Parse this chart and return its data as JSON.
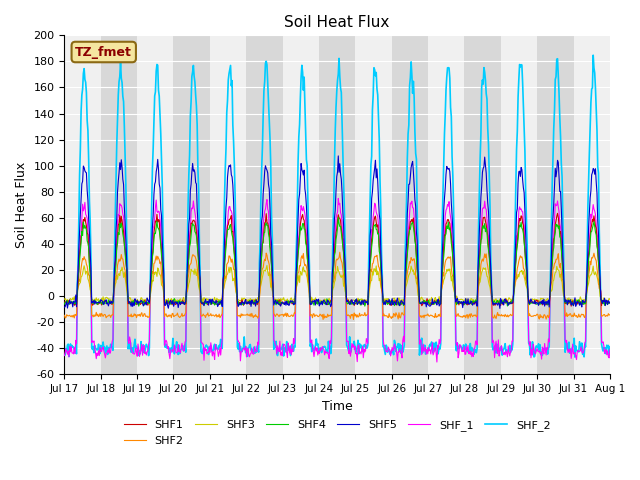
{
  "title": "Soil Heat Flux",
  "xlabel": "Time",
  "ylabel": "Soil Heat Flux",
  "ylim": [
    -60,
    200
  ],
  "yticks": [
    -60,
    -40,
    -20,
    0,
    20,
    40,
    60,
    80,
    100,
    120,
    140,
    160,
    180,
    200
  ],
  "xtick_positions": [
    0,
    1,
    2,
    3,
    4,
    5,
    6,
    7,
    8,
    9,
    10,
    11,
    12,
    13,
    14,
    15
  ],
  "xtick_labels": [
    "Jul 17",
    "Jul 18",
    "Jul 19",
    "Jul 20",
    "Jul 21",
    "Jul 22",
    "Jul 23",
    "Jul 24",
    "Jul 25",
    "Jul 26",
    "Jul 27",
    "Jul 28",
    "Jul 29",
    "Jul 30",
    "Jul 31",
    "Aug 1"
  ],
  "series_colors": {
    "SHF1": "#cc0000",
    "SHF2": "#ff8800",
    "SHF3": "#cccc00",
    "SHF4": "#00cc00",
    "SHF5": "#0000cc",
    "SHF_1": "#ff00ff",
    "SHF_2": "#00ccff"
  },
  "legend_label": "TZ_fmet",
  "bg_color": "#e8e8e8",
  "band_light": "#f0f0f0",
  "band_dark": "#d8d8d8",
  "n_days": 15,
  "n_points_per_day": 48
}
